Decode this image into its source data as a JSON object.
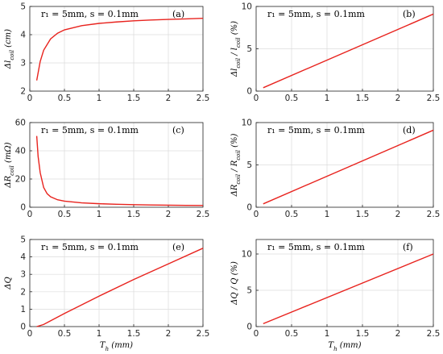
{
  "chart_data": [
    {
      "id": "a",
      "type": "line",
      "annotation": "r₁ = 5mm, s = 0.1mm",
      "panel_tag": "(a)",
      "ylabel": "Δl_coil (cm)",
      "xlabel": "",
      "xlim": [
        0,
        2.5
      ],
      "ylim": [
        2,
        5
      ],
      "xticks": [
        "0",
        "0.5",
        "1",
        "1.5",
        "2",
        "2.5"
      ],
      "yticks": [
        "2",
        "3",
        "4",
        "5"
      ],
      "grid": true,
      "color": "#e8231e",
      "x": [
        0.1,
        0.15,
        0.2,
        0.3,
        0.4,
        0.5,
        0.75,
        1.0,
        1.25,
        1.5,
        1.75,
        2.0,
        2.25,
        2.5
      ],
      "y": [
        2.38,
        3.05,
        3.45,
        3.85,
        4.05,
        4.17,
        4.32,
        4.4,
        4.45,
        4.49,
        4.52,
        4.54,
        4.56,
        4.58
      ]
    },
    {
      "id": "b",
      "type": "line",
      "annotation": "r₁ = 5mm, s = 0.1mm",
      "panel_tag": "(b)",
      "ylabel": "Δl_coil / l_coil (%)",
      "xlabel": "",
      "xlim": [
        0,
        2.5
      ],
      "ylim": [
        0,
        10
      ],
      "xticks": [
        "0",
        "0.5",
        "1",
        "1.5",
        "2",
        "2.5"
      ],
      "yticks": [
        "0",
        "5",
        "10"
      ],
      "grid": true,
      "color": "#e8231e",
      "x": [
        0.1,
        2.5
      ],
      "y": [
        0.4,
        9.1
      ]
    },
    {
      "id": "c",
      "type": "line",
      "annotation": "r₁ = 5mm, s = 0.1mm",
      "panel_tag": "(c)",
      "ylabel": "ΔR_coil (mΩ)",
      "xlabel": "",
      "xlim": [
        0,
        2.5
      ],
      "ylim": [
        0,
        60
      ],
      "xticks": [
        "0",
        "0.5",
        "1",
        "1.5",
        "2",
        "2.5"
      ],
      "yticks": [
        "0",
        "20",
        "40",
        "60"
      ],
      "grid": true,
      "color": "#e8231e",
      "x": [
        0.1,
        0.12,
        0.15,
        0.2,
        0.25,
        0.3,
        0.4,
        0.5,
        0.75,
        1.0,
        1.25,
        1.5,
        1.75,
        2.0,
        2.25,
        2.5
      ],
      "y": [
        50.5,
        36.0,
        24.5,
        14.0,
        9.6,
        7.4,
        5.3,
        4.3,
        3.1,
        2.5,
        2.1,
        1.8,
        1.6,
        1.45,
        1.35,
        1.25
      ]
    },
    {
      "id": "d",
      "type": "line",
      "annotation": "r₁ = 5mm, s = 0.1mm",
      "panel_tag": "(d)",
      "ylabel": "ΔR_coil / R_coil (%)",
      "xlabel": "",
      "xlim": [
        0,
        2.5
      ],
      "ylim": [
        0,
        10
      ],
      "xticks": [
        "0",
        "0.5",
        "1",
        "1.5",
        "2",
        "2.5"
      ],
      "yticks": [
        "0",
        "5",
        "10"
      ],
      "grid": true,
      "color": "#e8231e",
      "x": [
        0.1,
        2.5
      ],
      "y": [
        0.4,
        9.1
      ]
    },
    {
      "id": "e",
      "type": "line",
      "annotation": "r₁ = 5mm, s = 0.1mm",
      "panel_tag": "(e)",
      "ylabel": "ΔQ",
      "xlabel": "T_h (mm)",
      "xlim": [
        0,
        2.5
      ],
      "ylim": [
        0,
        5
      ],
      "xticks": [
        "0",
        "0.5",
        "1",
        "1.5",
        "2",
        "2.5"
      ],
      "yticks": [
        "0",
        "1",
        "2",
        "3",
        "4",
        "5"
      ],
      "grid": true,
      "color": "#e8231e",
      "x": [
        0.1,
        0.2,
        0.5,
        1.0,
        1.5,
        2.0,
        2.5
      ],
      "y": [
        0.0,
        0.12,
        0.75,
        1.75,
        2.7,
        3.6,
        4.5
      ]
    },
    {
      "id": "f",
      "type": "line",
      "annotation": "r₁ = 5mm, s = 0.1mm",
      "panel_tag": "(f)",
      "ylabel": "ΔQ / Q (%)",
      "xlabel": "T_h (mm)",
      "xlim": [
        0,
        2.5
      ],
      "ylim": [
        0,
        12
      ],
      "xticks": [
        "0",
        "0.5",
        "1",
        "1.5",
        "2",
        "2.5"
      ],
      "yticks": [
        "0",
        "5",
        "10"
      ],
      "grid": true,
      "color": "#e8231e",
      "x": [
        0.1,
        2.5
      ],
      "y": [
        0.4,
        10.0
      ]
    }
  ]
}
